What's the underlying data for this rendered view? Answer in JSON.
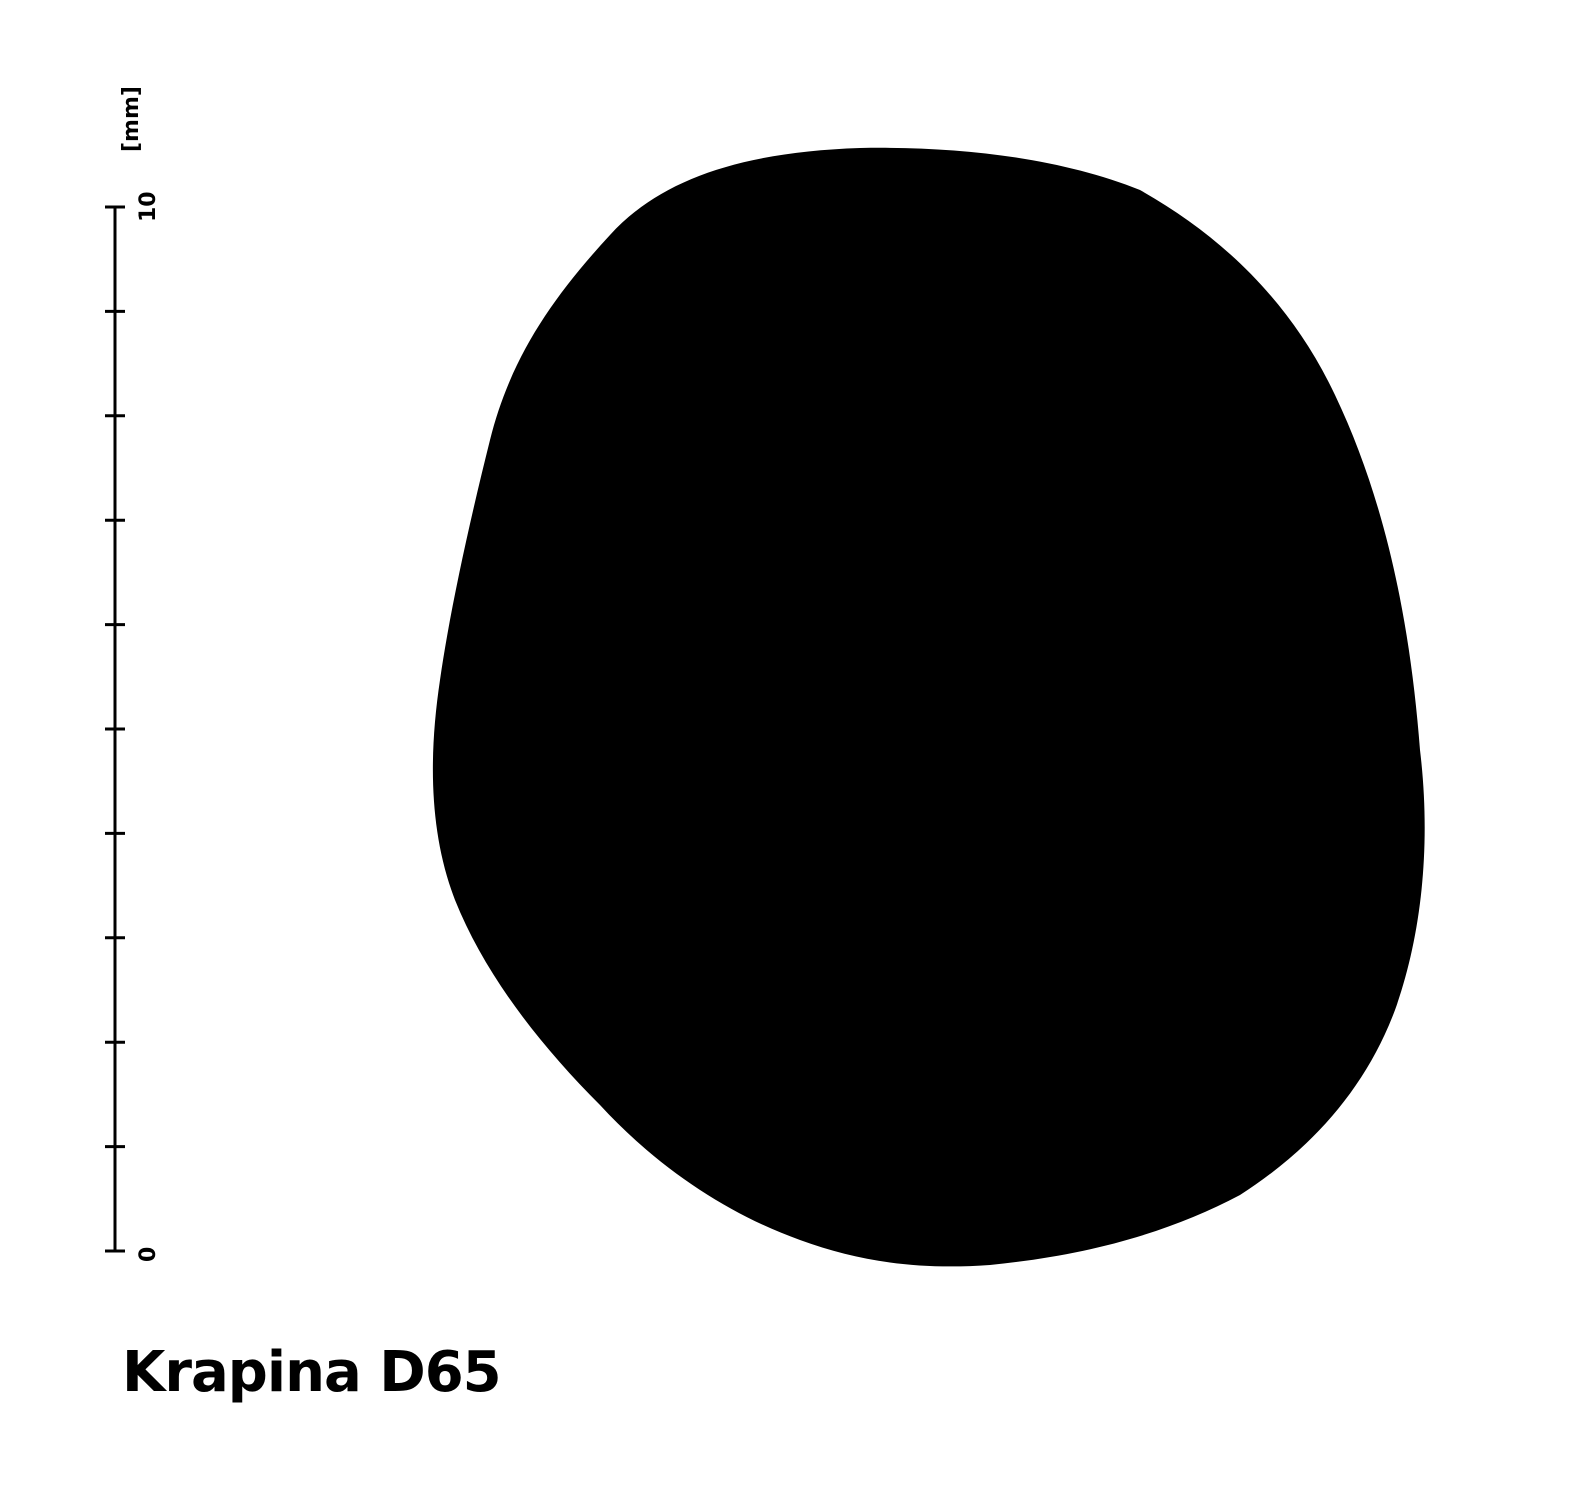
{
  "scale_bar": {
    "unit": "[mm]",
    "min_label": "0",
    "max_label": "10",
    "min_value": 0,
    "max_value": 10,
    "major_step": 1
  },
  "specimen": {
    "label": "Krapina D65"
  },
  "colors": {
    "outline_fill": "#000000",
    "background": "#ffffff",
    "scale": "#000000"
  }
}
